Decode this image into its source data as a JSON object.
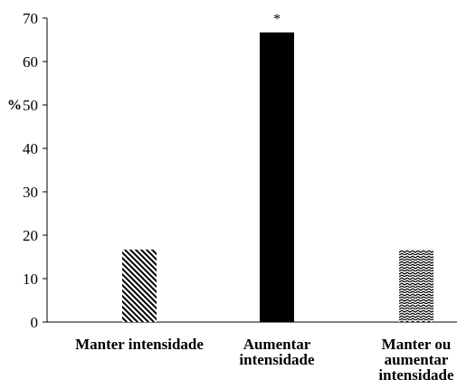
{
  "chart_data": {
    "type": "bar",
    "ylabel": "%",
    "ylim": [
      0,
      70
    ],
    "yticks": [
      0,
      10,
      20,
      30,
      40,
      50,
      60,
      70
    ],
    "grid": false,
    "categories": [
      [
        "Manter intensidade"
      ],
      [
        "Aumentar",
        "intensidade"
      ],
      [
        "Manter ou",
        "aumentar",
        "intensidade"
      ]
    ],
    "values": [
      16.7,
      66.7,
      16.7
    ],
    "fills": [
      "diagonal-hatch",
      "solid-black",
      "zigzag"
    ],
    "annotations": [
      {
        "category_index": 1,
        "text": "*"
      }
    ]
  }
}
